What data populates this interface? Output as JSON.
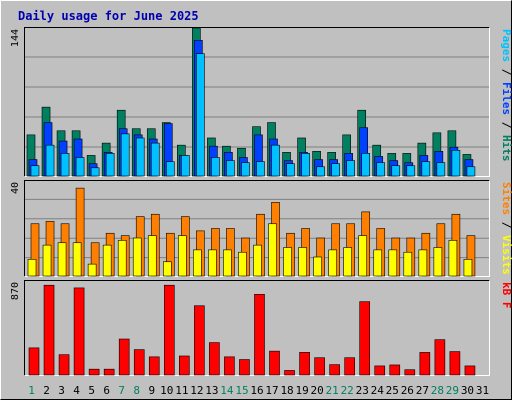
{
  "chart_data": {
    "type": "bar",
    "title": "Daily usage for June 2025",
    "x": [
      "1",
      "2",
      "3",
      "4",
      "5",
      "6",
      "7",
      "8",
      "9",
      "10",
      "11",
      "12",
      "13",
      "14",
      "15",
      "16",
      "17",
      "18",
      "19",
      "20",
      "21",
      "22",
      "23",
      "24",
      "25",
      "26",
      "27",
      "28",
      "29",
      "30",
      "31"
    ],
    "weekend_days": [
      1,
      7,
      8,
      14,
      15,
      21,
      22,
      28,
      29
    ],
    "panels": [
      {
        "id": "hits",
        "ymax_label": "144",
        "ylim": [
          0,
          144
        ],
        "side_label": [
          "Pages",
          " / ",
          "Files",
          " / ",
          "Hits"
        ],
        "side_colors": [
          "#00c0ff",
          "#000000",
          "#0040ff",
          "#000000",
          "#008060"
        ],
        "series": [
          {
            "name": "Hits",
            "color": "#008060",
            "values": [
              40,
              67,
              44,
              44,
              20,
              32,
              64,
              46,
              46,
              52,
              30,
              144,
              37,
              29,
              27,
              48,
              52,
              23,
              37,
              24,
              23,
              40,
              64,
              30,
              22,
              22,
              32,
              42,
              44,
              21
            ]
          },
          {
            "name": "Files",
            "color": "#0040ff",
            "values": [
              16,
              52,
              34,
              36,
              12,
              23,
              46,
              40,
              36,
              51,
              20,
              132,
              29,
              23,
              18,
              40,
              36,
              15,
              23,
              16,
              16,
              22,
              47,
              19,
              15,
              13,
              20,
              24,
              28,
              16
            ]
          },
          {
            "name": "Pages",
            "color": "#00c0ff",
            "values": [
              10,
              30,
              22,
              18,
              8,
              22,
              41,
              37,
              32,
              14,
              20,
              119,
              18,
              15,
              13,
              14,
              30,
              12,
              22,
              9,
              12,
              15,
              22,
              13,
              10,
              10,
              14,
              13,
              25,
              9
            ]
          }
        ]
      },
      {
        "id": "visits",
        "ymax_label": "40",
        "ylim": [
          0,
          40
        ],
        "side_label": [
          "Sites",
          " / ",
          "Visits"
        ],
        "side_colors": [
          "#ff8000",
          "#000000",
          "#ffff00"
        ],
        "series": [
          {
            "name": "Visits",
            "color": "#ff8000",
            "values": [
              22,
              23,
              22,
              37,
              14,
              18,
              17,
              25,
              26,
              18,
              25,
              19,
              20,
              20,
              16,
              26,
              31,
              18,
              20,
              16,
              22,
              22,
              27,
              20,
              16,
              16,
              18,
              22,
              26,
              17
            ]
          },
          {
            "name": "Sites",
            "color": "#ffff00",
            "values": [
              7,
              13,
              14,
              14,
              5,
              13,
              15,
              16,
              17,
              6,
              17,
              11,
              11,
              11,
              10,
              13,
              22,
              12,
              12,
              8,
              11,
              12,
              17,
              11,
              11,
              10,
              11,
              12,
              15,
              7
            ]
          }
        ]
      },
      {
        "id": "kbytes",
        "ymax_label": "870",
        "ylim": [
          0,
          870
        ],
        "side_label": [
          "kB F"
        ],
        "side_colors": [
          "#ff0000"
        ],
        "series": [
          {
            "name": "kB F",
            "color": "#ff0000",
            "values": [
              251,
              831,
              188,
              806,
              54,
              54,
              333,
              235,
              168,
              831,
              176,
              641,
              300,
              168,
              143,
              747,
              221,
              42,
              210,
              160,
              96,
              160,
              679,
              84,
              93,
              49,
              209,
              327,
              217,
              84
            ]
          }
        ]
      }
    ]
  }
}
